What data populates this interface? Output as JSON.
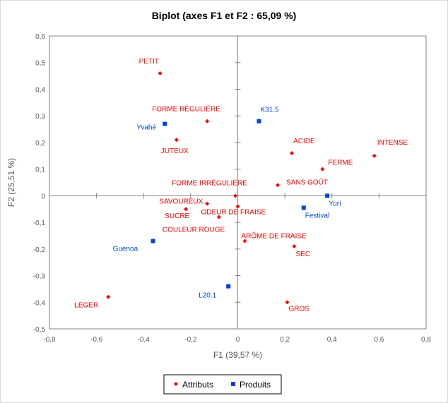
{
  "chart_data": {
    "type": "scatter",
    "title": "Biplot (axes F1 et F2 : 65,09 %)",
    "xlabel": "F1 (39,57 %)",
    "ylabel": "F2 (25,51 %)",
    "xlim": [
      -0.8,
      0.8
    ],
    "ylim": [
      -0.5,
      0.6
    ],
    "xticks": [
      -0.8,
      -0.6,
      -0.4,
      -0.2,
      0,
      0.2,
      0.4,
      0.6,
      0.8
    ],
    "xtick_labels": [
      "-0,8",
      "-0,6",
      "-0,4",
      "-0,2",
      "0",
      "0,2",
      "0,4",
      "0,6",
      "0,8"
    ],
    "yticks": [
      -0.5,
      -0.4,
      -0.3,
      -0.2,
      -0.1,
      0,
      0.1,
      0.2,
      0.3,
      0.4,
      0.5,
      0.6
    ],
    "ytick_labels": [
      "-0,5",
      "-0,4",
      "-0,3",
      "-0,2",
      "-0,1",
      "0",
      "0,1",
      "0,2",
      "0,3",
      "0,4",
      "0,5",
      "0,6"
    ],
    "grid": false,
    "legend_position": "bottom",
    "series": [
      {
        "name": "Attributs",
        "color": "#ff0000",
        "marker": "diamond",
        "points": [
          {
            "label": "PETIT",
            "x": -0.33,
            "y": 0.46
          },
          {
            "label": "FORME RÉGULIÈRE",
            "x": -0.13,
            "y": 0.28
          },
          {
            "label": "JUTEUX",
            "x": -0.26,
            "y": 0.21
          },
          {
            "label": "ACIDE",
            "x": 0.23,
            "y": 0.16
          },
          {
            "label": "INTENSE",
            "x": 0.58,
            "y": 0.15
          },
          {
            "label": "FERME",
            "x": 0.36,
            "y": 0.1
          },
          {
            "label": "SANS GOÛT",
            "x": 0.17,
            "y": 0.04
          },
          {
            "label": "FORME IRRÉGULIÈRE",
            "x": -0.01,
            "y": 0.0
          },
          {
            "label": "SAVOUREUX",
            "x": -0.13,
            "y": -0.03
          },
          {
            "label": "SUCRE",
            "x": -0.22,
            "y": -0.05
          },
          {
            "label": "ODEUR DE FRAISE",
            "x": 0.0,
            "y": -0.04
          },
          {
            "label": "COULEUR ROUGE",
            "x": -0.08,
            "y": -0.08
          },
          {
            "label": "ARÔME DE FRAISE",
            "x": 0.03,
            "y": -0.17
          },
          {
            "label": "SEC",
            "x": 0.24,
            "y": -0.19
          },
          {
            "label": "GROS",
            "x": 0.21,
            "y": -0.4
          },
          {
            "label": "LEGER",
            "x": -0.55,
            "y": -0.38
          }
        ]
      },
      {
        "name": "Produits",
        "color": "#0044dd",
        "marker": "square",
        "points": [
          {
            "label": "Yvahé",
            "x": -0.31,
            "y": 0.27
          },
          {
            "label": "K31.5",
            "x": 0.09,
            "y": 0.28
          },
          {
            "label": "Yurí",
            "x": 0.38,
            "y": 0.0
          },
          {
            "label": "Festival",
            "x": 0.28,
            "y": -0.045
          },
          {
            "label": "Guenoa",
            "x": -0.36,
            "y": -0.17
          },
          {
            "label": "L20.1",
            "x": -0.04,
            "y": -0.34
          }
        ]
      }
    ]
  }
}
